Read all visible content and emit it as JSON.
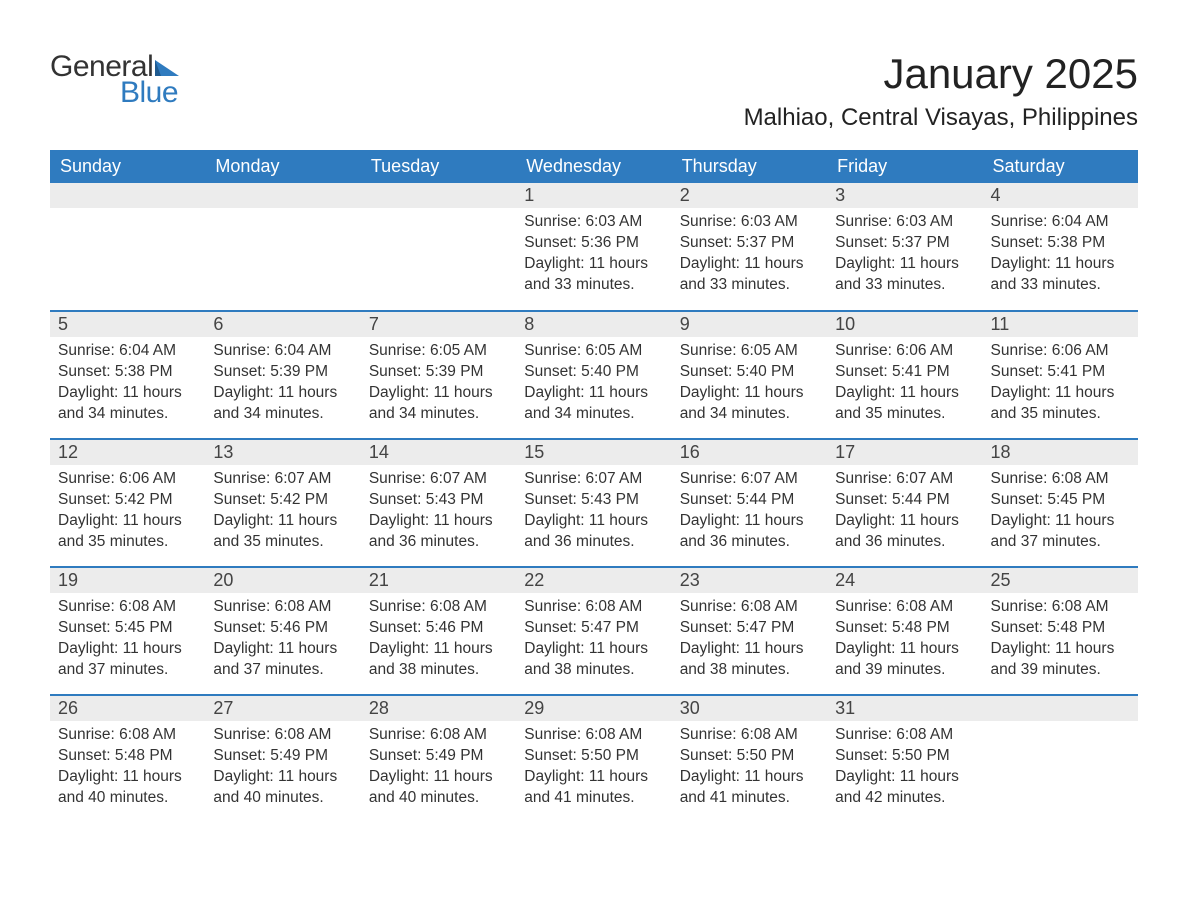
{
  "brand": {
    "general": "General",
    "blue": "Blue",
    "flag_color": "#2f7bbf"
  },
  "title": "January 2025",
  "location": "Malhiao, Central Visayas, Philippines",
  "columns": [
    "Sunday",
    "Monday",
    "Tuesday",
    "Wednesday",
    "Thursday",
    "Friday",
    "Saturday"
  ],
  "labels": {
    "sunrise": "Sunrise: ",
    "sunset": "Sunset: ",
    "daylight": "Daylight: "
  },
  "style": {
    "header_bg": "#2f7bbf",
    "header_fg": "#ffffff",
    "daynum_bg": "#ececec",
    "row_border": "#2f7bbf",
    "body_fg": "#333333",
    "title_fontsize": 42,
    "location_fontsize": 24,
    "th_fontsize": 18,
    "daynum_fontsize": 18,
    "cell_fontsize": 15.5
  },
  "weeks": [
    [
      null,
      null,
      null,
      {
        "n": "1",
        "sr": "6:03 AM",
        "ss": "5:36 PM",
        "dl": "11 hours and 33 minutes."
      },
      {
        "n": "2",
        "sr": "6:03 AM",
        "ss": "5:37 PM",
        "dl": "11 hours and 33 minutes."
      },
      {
        "n": "3",
        "sr": "6:03 AM",
        "ss": "5:37 PM",
        "dl": "11 hours and 33 minutes."
      },
      {
        "n": "4",
        "sr": "6:04 AM",
        "ss": "5:38 PM",
        "dl": "11 hours and 33 minutes."
      }
    ],
    [
      {
        "n": "5",
        "sr": "6:04 AM",
        "ss": "5:38 PM",
        "dl": "11 hours and 34 minutes."
      },
      {
        "n": "6",
        "sr": "6:04 AM",
        "ss": "5:39 PM",
        "dl": "11 hours and 34 minutes."
      },
      {
        "n": "7",
        "sr": "6:05 AM",
        "ss": "5:39 PM",
        "dl": "11 hours and 34 minutes."
      },
      {
        "n": "8",
        "sr": "6:05 AM",
        "ss": "5:40 PM",
        "dl": "11 hours and 34 minutes."
      },
      {
        "n": "9",
        "sr": "6:05 AM",
        "ss": "5:40 PM",
        "dl": "11 hours and 34 minutes."
      },
      {
        "n": "10",
        "sr": "6:06 AM",
        "ss": "5:41 PM",
        "dl": "11 hours and 35 minutes."
      },
      {
        "n": "11",
        "sr": "6:06 AM",
        "ss": "5:41 PM",
        "dl": "11 hours and 35 minutes."
      }
    ],
    [
      {
        "n": "12",
        "sr": "6:06 AM",
        "ss": "5:42 PM",
        "dl": "11 hours and 35 minutes."
      },
      {
        "n": "13",
        "sr": "6:07 AM",
        "ss": "5:42 PM",
        "dl": "11 hours and 35 minutes."
      },
      {
        "n": "14",
        "sr": "6:07 AM",
        "ss": "5:43 PM",
        "dl": "11 hours and 36 minutes."
      },
      {
        "n": "15",
        "sr": "6:07 AM",
        "ss": "5:43 PM",
        "dl": "11 hours and 36 minutes."
      },
      {
        "n": "16",
        "sr": "6:07 AM",
        "ss": "5:44 PM",
        "dl": "11 hours and 36 minutes."
      },
      {
        "n": "17",
        "sr": "6:07 AM",
        "ss": "5:44 PM",
        "dl": "11 hours and 36 minutes."
      },
      {
        "n": "18",
        "sr": "6:08 AM",
        "ss": "5:45 PM",
        "dl": "11 hours and 37 minutes."
      }
    ],
    [
      {
        "n": "19",
        "sr": "6:08 AM",
        "ss": "5:45 PM",
        "dl": "11 hours and 37 minutes."
      },
      {
        "n": "20",
        "sr": "6:08 AM",
        "ss": "5:46 PM",
        "dl": "11 hours and 37 minutes."
      },
      {
        "n": "21",
        "sr": "6:08 AM",
        "ss": "5:46 PM",
        "dl": "11 hours and 38 minutes."
      },
      {
        "n": "22",
        "sr": "6:08 AM",
        "ss": "5:47 PM",
        "dl": "11 hours and 38 minutes."
      },
      {
        "n": "23",
        "sr": "6:08 AM",
        "ss": "5:47 PM",
        "dl": "11 hours and 38 minutes."
      },
      {
        "n": "24",
        "sr": "6:08 AM",
        "ss": "5:48 PM",
        "dl": "11 hours and 39 minutes."
      },
      {
        "n": "25",
        "sr": "6:08 AM",
        "ss": "5:48 PM",
        "dl": "11 hours and 39 minutes."
      }
    ],
    [
      {
        "n": "26",
        "sr": "6:08 AM",
        "ss": "5:48 PM",
        "dl": "11 hours and 40 minutes."
      },
      {
        "n": "27",
        "sr": "6:08 AM",
        "ss": "5:49 PM",
        "dl": "11 hours and 40 minutes."
      },
      {
        "n": "28",
        "sr": "6:08 AM",
        "ss": "5:49 PM",
        "dl": "11 hours and 40 minutes."
      },
      {
        "n": "29",
        "sr": "6:08 AM",
        "ss": "5:50 PM",
        "dl": "11 hours and 41 minutes."
      },
      {
        "n": "30",
        "sr": "6:08 AM",
        "ss": "5:50 PM",
        "dl": "11 hours and 41 minutes."
      },
      {
        "n": "31",
        "sr": "6:08 AM",
        "ss": "5:50 PM",
        "dl": "11 hours and 42 minutes."
      },
      null
    ]
  ]
}
